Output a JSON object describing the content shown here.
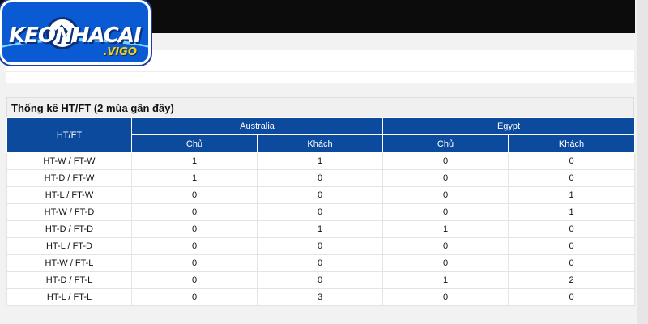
{
  "brand": {
    "logo_text": "KEONHACAI",
    "logo_sub": ".VIGO",
    "colors": {
      "logo_bg": "#0a5bd3",
      "header_bg": "#0b4a9c",
      "topbar": "#0c0c0c"
    }
  },
  "stats": {
    "title": "Thống kê HT/FT (2 mùa gần đây)",
    "row_header": "HT/FT",
    "teams": [
      "Australia",
      "Egypt"
    ],
    "subheaders": [
      "Chủ",
      "Khách",
      "Chủ",
      "Khách"
    ],
    "rows": [
      {
        "label": "HT-W / FT-W",
        "values": [
          "1",
          "1",
          "0",
          "0"
        ]
      },
      {
        "label": "HT-D / FT-W",
        "values": [
          "1",
          "0",
          "0",
          "0"
        ]
      },
      {
        "label": "HT-L / FT-W",
        "values": [
          "0",
          "0",
          "0",
          "1"
        ]
      },
      {
        "label": "HT-W / FT-D",
        "values": [
          "0",
          "0",
          "0",
          "1"
        ]
      },
      {
        "label": "HT-D / FT-D",
        "values": [
          "0",
          "1",
          "1",
          "0"
        ]
      },
      {
        "label": "HT-L / FT-D",
        "values": [
          "0",
          "0",
          "0",
          "0"
        ]
      },
      {
        "label": "HT-W / FT-L",
        "values": [
          "0",
          "0",
          "0",
          "0"
        ]
      },
      {
        "label": "HT-D / FT-L",
        "values": [
          "0",
          "0",
          "1",
          "2"
        ]
      },
      {
        "label": "HT-L / FT-L",
        "values": [
          "0",
          "3",
          "0",
          "0"
        ]
      }
    ]
  }
}
